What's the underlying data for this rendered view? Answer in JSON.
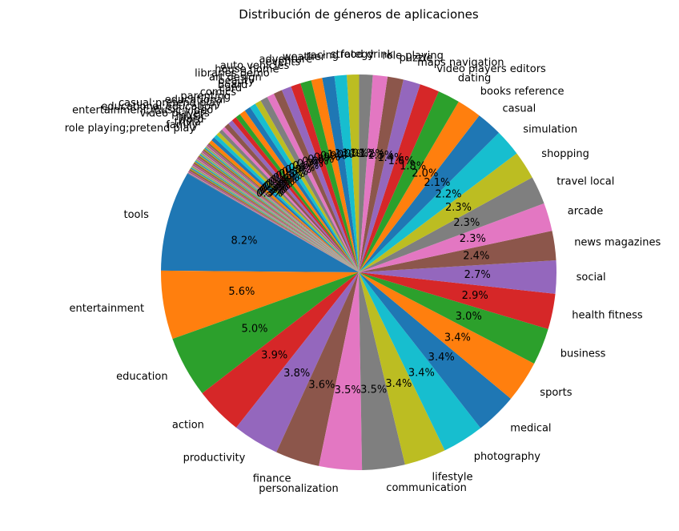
{
  "chart_data": {
    "type": "pie",
    "title": "Distribución de géneros de aplicaciones",
    "xlabel": "",
    "ylabel": "",
    "legend": "none",
    "start_angle_deg": 150,
    "direction": "counterclockwise",
    "categories": [
      "tools",
      "entertainment",
      "education",
      "action",
      "productivity",
      "finance",
      "personalization",
      "communication",
      "lifestyle",
      "photography",
      "medical",
      "sports",
      "business",
      "health  fitness",
      "social",
      "news  magazines",
      "arcade",
      "travel  local",
      "shopping",
      "simulation",
      "casual",
      "books  reference",
      "dating",
      "video players  editors",
      "maps  navigation",
      "puzzle",
      "role playing",
      "food  drink",
      "strategy",
      "racing",
      "weather",
      "adventure",
      "events",
      "auto  vehicles",
      "house  home",
      "libraries  demo"
    ],
    "values": [
      8.2,
      5.6,
      5.0,
      3.9,
      3.8,
      3.6,
      3.5,
      3.5,
      3.4,
      3.4,
      3.4,
      3.4,
      3.0,
      2.9,
      2.7,
      2.4,
      2.3,
      2.3,
      2.3,
      2.2,
      2.1,
      2.0,
      1.8,
      1.6,
      1.4,
      1.3,
      1.2,
      1.1,
      1.0,
      1.0,
      1.0,
      0.9,
      0.9,
      0.8,
      0.8,
      0.7
    ],
    "percent_labels": [
      "8.2%",
      "5.6%",
      "5.0%",
      "3.9%",
      "3.8%",
      "3.6%",
      "3.5%",
      "3.5%",
      "3.4%",
      "3.4%",
      "3.4%",
      "3.4%",
      "3.0%",
      "2.9%",
      "2.7%",
      "2.4%",
      "2.3%",
      "2.3%",
      "2.3%",
      "2.2%",
      "2.1%",
      "2.0%",
      "1.8%",
      "1.6%",
      "1.4%",
      "1.3%",
      "1.2%",
      "1.1%",
      "1.0%",
      "1.0%",
      "1.0%",
      "0.9%",
      "0.9%",
      "0.8%",
      "0.8%",
      "0.7%"
    ],
    "minor_categories": [
      "art design",
      "beauty",
      "board",
      "card",
      "comics",
      "parenting",
      "educational",
      "casual;pretend play",
      "educational;education",
      "entertainment;music video",
      "video players",
      "music",
      "word",
      "trivia",
      "family",
      "role playing;pretend play"
    ],
    "minor_values": [
      0.6,
      0.6,
      0.5,
      0.5,
      0.5,
      0.5,
      0.4,
      0.4,
      0.4,
      0.4,
      0.3,
      0.3,
      0.3,
      0.3,
      0.3,
      0.3
    ],
    "minor_percent_labels": [
      "0.6%",
      "0.6%",
      "0.5%",
      "0.5%",
      "0.5%",
      "0.5%",
      "0.4%",
      "0.4%",
      "0.4%",
      "0.4%",
      "0.3%",
      "0.3%",
      "0.3%",
      "0.3%",
      "0.3%",
      "0.3%"
    ],
    "tail_slice_count": 46,
    "colors": [
      "#1f77b4",
      "#ff7f0e",
      "#2ca02c",
      "#d62728",
      "#9467bd",
      "#8c564b",
      "#e377c2",
      "#7f7f7f",
      "#bcbd22",
      "#17becf"
    ]
  }
}
